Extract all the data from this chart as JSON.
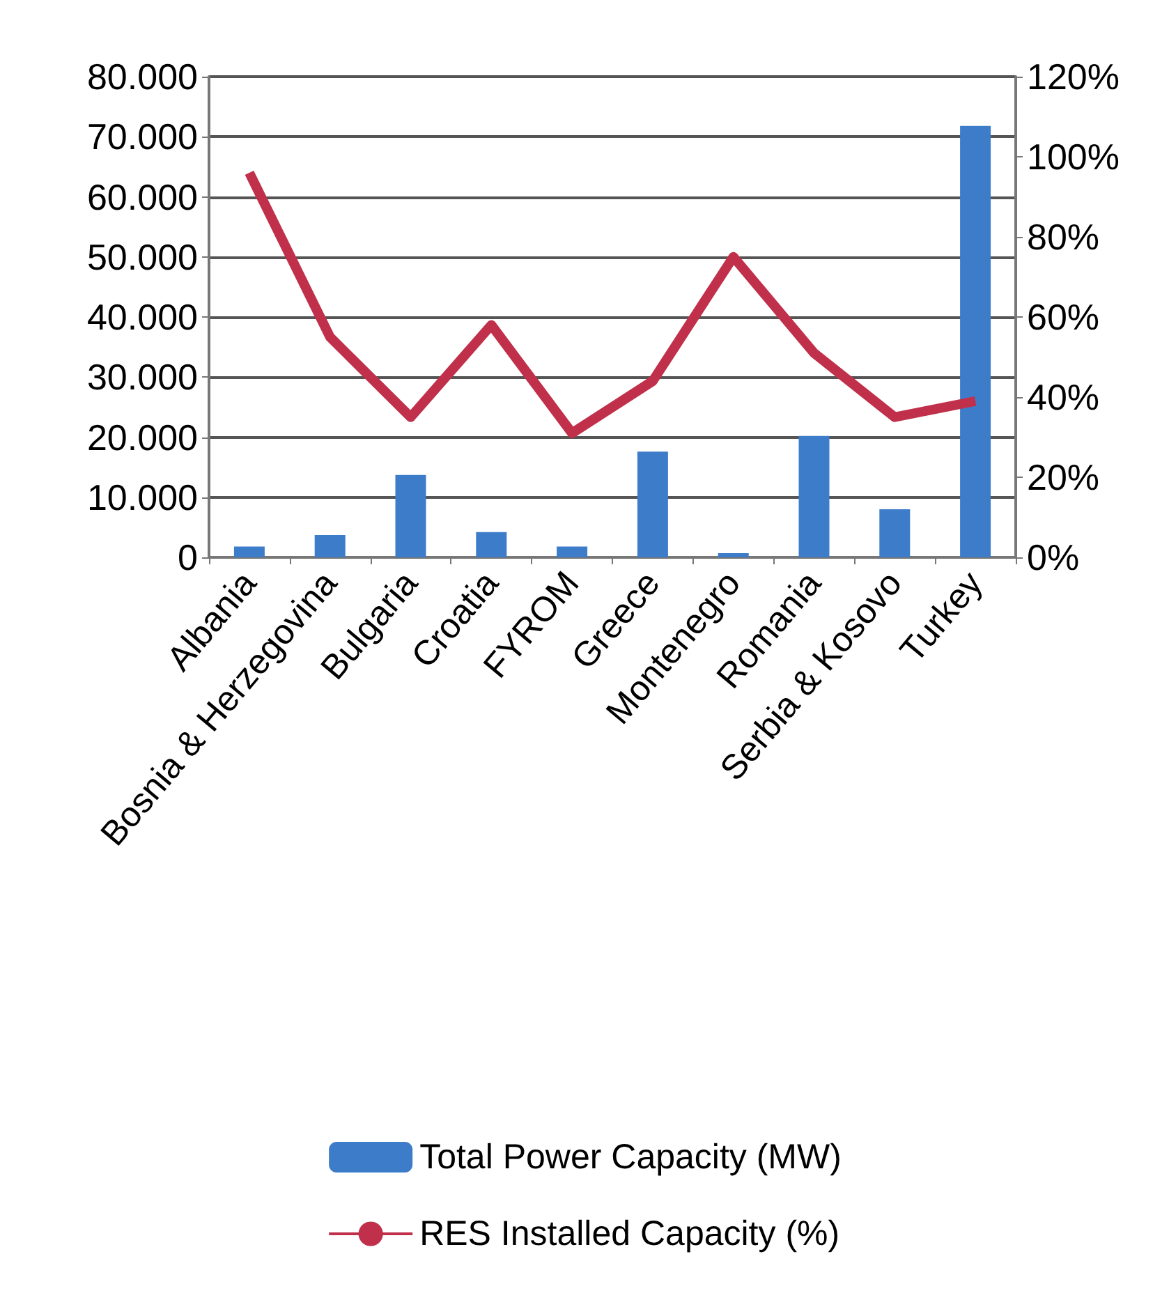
{
  "chart_data": {
    "type": "bar",
    "categories": [
      "Albania",
      "Bosnia & Herzegovina",
      "Bulgaria",
      "Croatia",
      "FYROM",
      "Greece",
      "Montenegro",
      "Romania",
      "Serbia & Kosovo",
      "Turkey"
    ],
    "series": [
      {
        "name": "Total Power Capacity (MW)",
        "color": "#3d7cc9",
        "values": [
          1800,
          3700,
          13700,
          4200,
          1800,
          17600,
          700,
          20200,
          8000,
          71800
        ]
      },
      {
        "name": "RES Installed Capacity (%)",
        "type": "line",
        "axis": "y2",
        "color": "#c0304a",
        "values": [
          96,
          55,
          35,
          58,
          31,
          44,
          75,
          51,
          35,
          39
        ]
      }
    ],
    "ylim": [
      0,
      80000
    ],
    "yticks": [
      {
        "value": 0,
        "label": "0"
      },
      {
        "value": 10000,
        "label": "10.000"
      },
      {
        "value": 20000,
        "label": "20.000"
      },
      {
        "value": 30000,
        "label": "30.000"
      },
      {
        "value": 40000,
        "label": "40.000"
      },
      {
        "value": 50000,
        "label": "50.000"
      },
      {
        "value": 60000,
        "label": "60.000"
      },
      {
        "value": 70000,
        "label": "70.000"
      },
      {
        "value": 80000,
        "label": "80.000"
      }
    ],
    "y2lim": [
      0,
      120
    ],
    "y2ticks": [
      {
        "value": 0,
        "label": "0%"
      },
      {
        "value": 20,
        "label": "20%"
      },
      {
        "value": 40,
        "label": "40%"
      },
      {
        "value": 60,
        "label": "60%"
      },
      {
        "value": 80,
        "label": "80%"
      },
      {
        "value": 100,
        "label": "100%"
      },
      {
        "value": 120,
        "label": "120%"
      }
    ],
    "grid": "y",
    "legend": "bottom",
    "marker": "none",
    "line_style": "solid"
  }
}
